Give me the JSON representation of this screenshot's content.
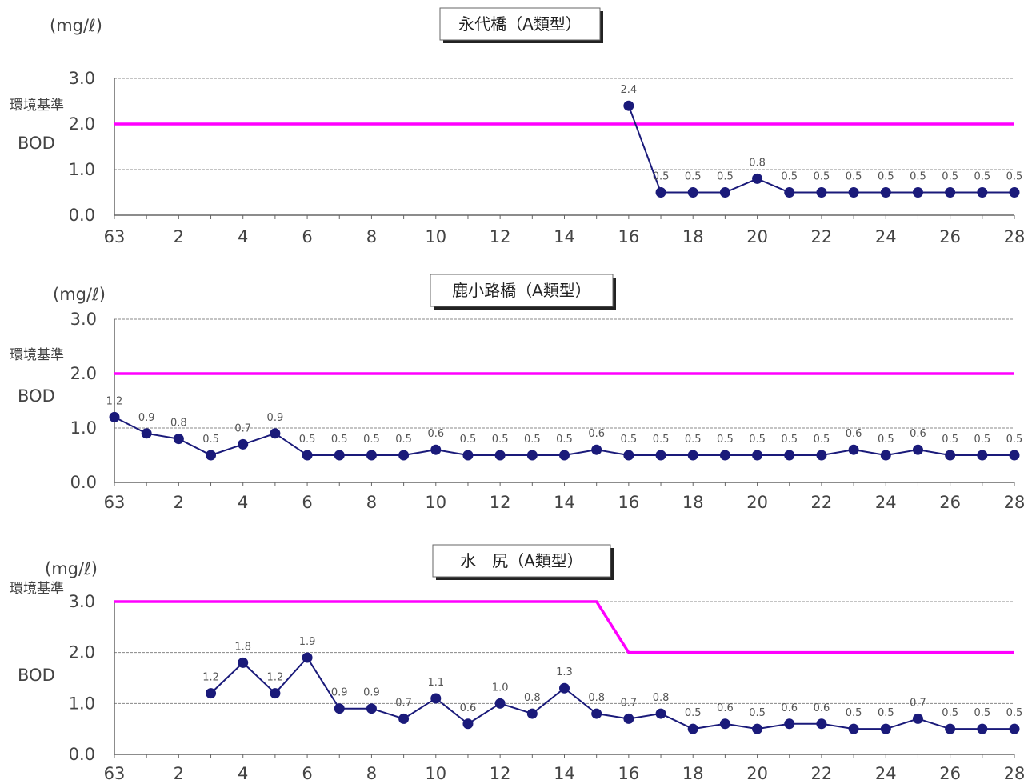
{
  "colors": {
    "series": "#1a1a7a",
    "standard": "#ff00ff",
    "grid": "#888888",
    "axis": "#666666"
  },
  "chart_data": [
    {
      "type": "line",
      "title": "永代橋（A類型）",
      "unit": "(mg/ℓ)",
      "standard_label": "環境基準",
      "ylabel": "BOD",
      "ylim": [
        0,
        3
      ],
      "yticks": [
        "0.0",
        "1.0",
        "2.0",
        "3.0"
      ],
      "xticks": [
        "63",
        "2",
        "4",
        "6",
        "8",
        "10",
        "12",
        "14",
        "16",
        "18",
        "20",
        "22",
        "24",
        "26",
        "28"
      ],
      "x": [
        16,
        17,
        18,
        19,
        20,
        21,
        22,
        23,
        24,
        25,
        26,
        27,
        28
      ],
      "values": [
        2.4,
        0.5,
        0.5,
        0.5,
        0.8,
        0.5,
        0.5,
        0.5,
        0.5,
        0.5,
        0.5,
        0.5,
        0.5
      ],
      "labels": [
        "2.4",
        "0.5",
        "0.5",
        "0.5",
        "0.8",
        "0.5",
        "0.5",
        "0.5",
        "0.5",
        "0.5",
        "0.5",
        "0.5",
        "0.5"
      ],
      "standard": {
        "x": [
          0,
          28
        ],
        "y": [
          2.0,
          2.0
        ]
      }
    },
    {
      "type": "line",
      "title": "鹿小路橋（A類型）",
      "unit": "(mg/ℓ)",
      "standard_label": "環境基準",
      "ylabel": "BOD",
      "ylim": [
        0,
        3
      ],
      "yticks": [
        "0.0",
        "1.0",
        "2.0",
        "3.0"
      ],
      "xticks": [
        "63",
        "2",
        "4",
        "6",
        "8",
        "10",
        "12",
        "14",
        "16",
        "18",
        "20",
        "22",
        "24",
        "26",
        "28"
      ],
      "x": [
        0,
        1,
        2,
        3,
        4,
        5,
        6,
        7,
        8,
        9,
        10,
        11,
        12,
        13,
        14,
        15,
        16,
        17,
        18,
        19,
        20,
        21,
        22,
        23,
        24,
        25,
        26,
        27,
        28
      ],
      "values": [
        1.2,
        0.9,
        0.8,
        0.5,
        0.7,
        0.9,
        0.5,
        0.5,
        0.5,
        0.5,
        0.6,
        0.5,
        0.5,
        0.5,
        0.5,
        0.6,
        0.5,
        0.5,
        0.5,
        0.5,
        0.5,
        0.5,
        0.5,
        0.6,
        0.5,
        0.6,
        0.5,
        0.5,
        0.5
      ],
      "labels": [
        "1.2",
        "0.9",
        "0.8",
        "0.5",
        "0.7",
        "0.9",
        "0.5",
        "0.5",
        "0.5",
        "0.5",
        "0.6",
        "0.5",
        "0.5",
        "0.5",
        "0.5",
        "0.6",
        "0.5",
        "0.5",
        "0.5",
        "0.5",
        "0.5",
        "0.5",
        "0.5",
        "0.6",
        "0.5",
        "0.6",
        "0.5",
        "0.5",
        "0.5"
      ],
      "standard": {
        "x": [
          0,
          28
        ],
        "y": [
          2.0,
          2.0
        ]
      }
    },
    {
      "type": "line",
      "title": "水　尻（A類型）",
      "unit": "(mg/ℓ)",
      "standard_label": "環境基準",
      "ylabel": "BOD",
      "ylim": [
        0,
        3
      ],
      "yticks": [
        "0.0",
        "1.0",
        "2.0",
        "3.0"
      ],
      "xticks": [
        "63",
        "2",
        "4",
        "6",
        "8",
        "10",
        "12",
        "14",
        "16",
        "18",
        "20",
        "22",
        "24",
        "26",
        "28"
      ],
      "x": [
        3,
        4,
        5,
        6,
        7,
        8,
        9,
        10,
        11,
        12,
        13,
        14,
        15,
        16,
        17,
        18,
        19,
        20,
        21,
        22,
        23,
        24,
        25,
        26,
        27,
        28
      ],
      "values": [
        1.2,
        1.8,
        1.2,
        1.9,
        0.9,
        0.9,
        0.7,
        1.1,
        0.6,
        1.0,
        0.8,
        1.3,
        0.8,
        0.7,
        0.8,
        0.5,
        0.6,
        0.5,
        0.6,
        0.6,
        0.5,
        0.5,
        0.7,
        0.5,
        0.5,
        0.5
      ],
      "labels": [
        "1.2",
        "1.8",
        "1.2",
        "1.9",
        "0.9",
        "0.9",
        "0.7",
        "1.1",
        "0.6",
        "1.0",
        "0.8",
        "1.3",
        "0.8",
        "0.7",
        "0.8",
        "0.5",
        "0.6",
        "0.5",
        "0.6",
        "0.6",
        "0.5",
        "0.5",
        "0.7",
        "0.5",
        "0.5",
        "0.5"
      ],
      "standard": {
        "x": [
          0,
          15,
          16,
          28
        ],
        "y": [
          3.0,
          3.0,
          2.0,
          2.0
        ]
      }
    }
  ]
}
